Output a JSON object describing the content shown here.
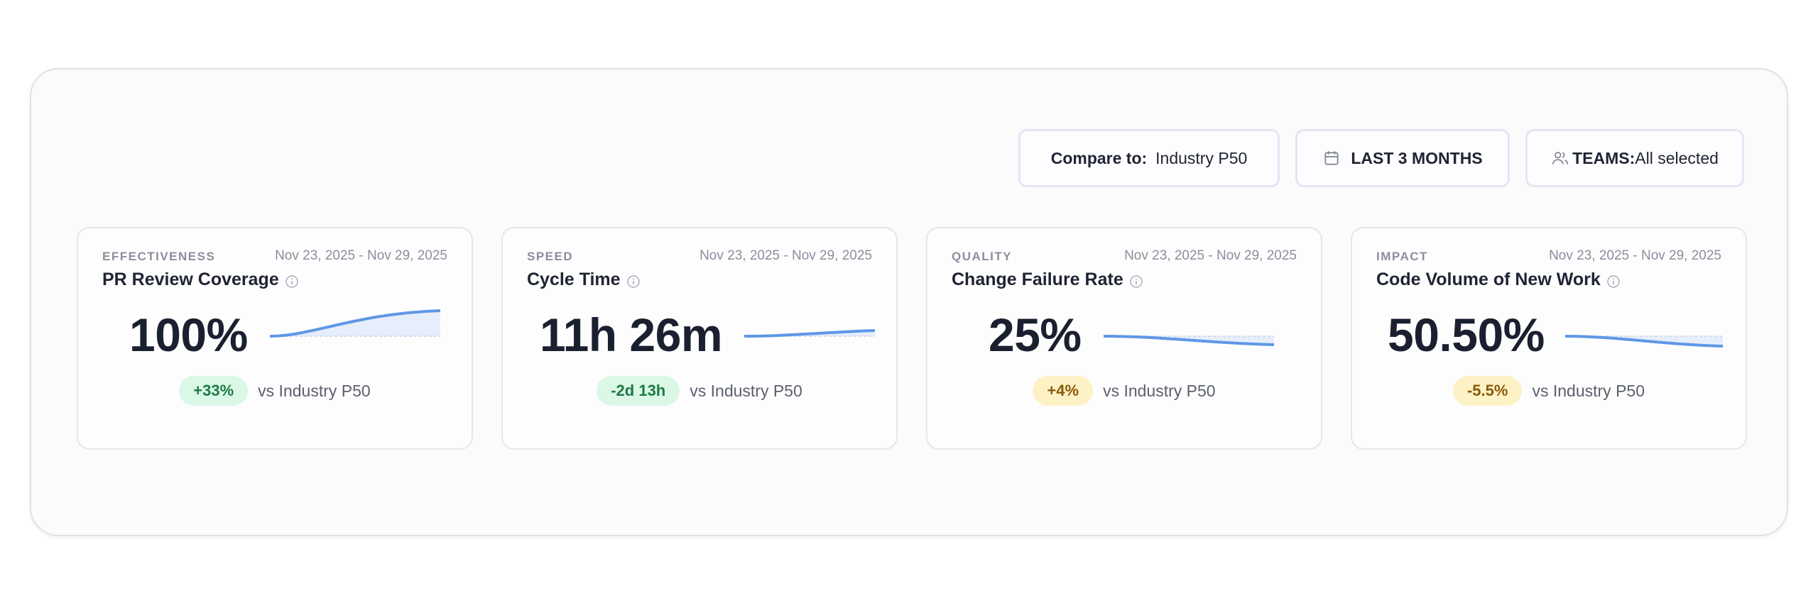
{
  "filters": {
    "compare_label": "Compare to:",
    "compare_value": "Industry P50",
    "period": "LAST 3 MONTHS",
    "teams_label": "TEAMS:",
    "teams_value": "All selected"
  },
  "cards": [
    {
      "category": "EFFECTIVENESS",
      "date_range": "Nov 23, 2025 - Nov 29, 2025",
      "title": "PR Review Coverage",
      "value": "100%",
      "delta": "+33%",
      "delta_status": "good",
      "comparison": "vs Industry P50",
      "trend": "up"
    },
    {
      "category": "SPEED",
      "date_range": "Nov 23, 2025 - Nov 29, 2025",
      "title": "Cycle Time",
      "value": "11h 26m",
      "delta": "-2d 13h",
      "delta_status": "good",
      "comparison": "vs Industry P50",
      "trend": "slight-up"
    },
    {
      "category": "QUALITY",
      "date_range": "Nov 23, 2025 - Nov 29, 2025",
      "title": "Change Failure Rate",
      "value": "25%",
      "delta": "+4%",
      "delta_status": "warn",
      "comparison": "vs Industry P50",
      "trend": "down"
    },
    {
      "category": "IMPACT",
      "date_range": "Nov 23, 2025 - Nov 29, 2025",
      "title": "Code Volume of New Work",
      "value": "50.50%",
      "delta": "-5.5%",
      "delta_status": "warn",
      "comparison": "vs Industry P50",
      "trend": "down"
    }
  ],
  "colors": {
    "sparkline": "#5f97e6",
    "sparkline_fill": "#e7eefb",
    "good_badge_bg": "#dbf7e6",
    "warn_badge_bg": "#fdf2c5"
  },
  "icons": {
    "period": "calendar-icon",
    "teams": "users-icon",
    "info": "info-icon"
  }
}
